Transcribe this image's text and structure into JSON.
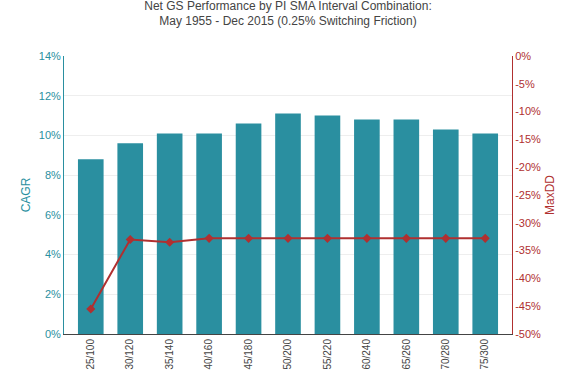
{
  "chart_data": {
    "type": "bar",
    "title": "Net GS Performance by PI SMA Interval Combination:",
    "subtitle": "May 1955 - Dec 2015 (0.25% Switching Friction)",
    "ylabel": "CAGR",
    "y2label": "MaxDD",
    "categories": [
      "25/100",
      "30/120",
      "35/140",
      "40/160",
      "45/180",
      "50/200",
      "55/220",
      "60/240",
      "65/260",
      "70/280",
      "75/300"
    ],
    "series": [
      {
        "type": "bar",
        "color": "#2A8FA0",
        "values": [
          0.088,
          0.096,
          0.101,
          0.101,
          0.106,
          0.111,
          0.11,
          0.108,
          0.108,
          0.103,
          0.101
        ]
      },
      {
        "type": "line",
        "axis": "y2",
        "color": "#B03030",
        "marker": "diamond",
        "line_style": "solid",
        "values": [
          -0.455,
          -0.33,
          -0.335,
          -0.328,
          -0.328,
          -0.328,
          -0.328,
          -0.328,
          -0.328,
          -0.328,
          -0.328
        ]
      }
    ],
    "ylim": [
      0,
      0.14
    ],
    "yticks": [
      {
        "value": 0,
        "label": "0%"
      },
      {
        "value": 0.02,
        "label": "2%"
      },
      {
        "value": 0.04,
        "label": "4%"
      },
      {
        "value": 0.06,
        "label": "6%"
      },
      {
        "value": 0.08,
        "label": "8%"
      },
      {
        "value": 0.1,
        "label": "10%"
      },
      {
        "value": 0.12,
        "label": "12%"
      },
      {
        "value": 0.14,
        "label": "14%"
      }
    ],
    "y2lim": [
      -0.5,
      0
    ],
    "y2ticks": [
      {
        "value": 0,
        "label": "0%"
      },
      {
        "value": -0.05,
        "label": "-5%"
      },
      {
        "value": -0.1,
        "label": "-10%"
      },
      {
        "value": -0.15,
        "label": "-15%"
      },
      {
        "value": -0.2,
        "label": "-20%"
      },
      {
        "value": -0.25,
        "label": "-25%"
      },
      {
        "value": -0.3,
        "label": "-30%"
      },
      {
        "value": -0.35,
        "label": "-35%"
      },
      {
        "value": -0.4,
        "label": "-40%"
      },
      {
        "value": -0.45,
        "label": "-45%"
      },
      {
        "value": -0.5,
        "label": "-50%"
      }
    ],
    "grid": true
  }
}
